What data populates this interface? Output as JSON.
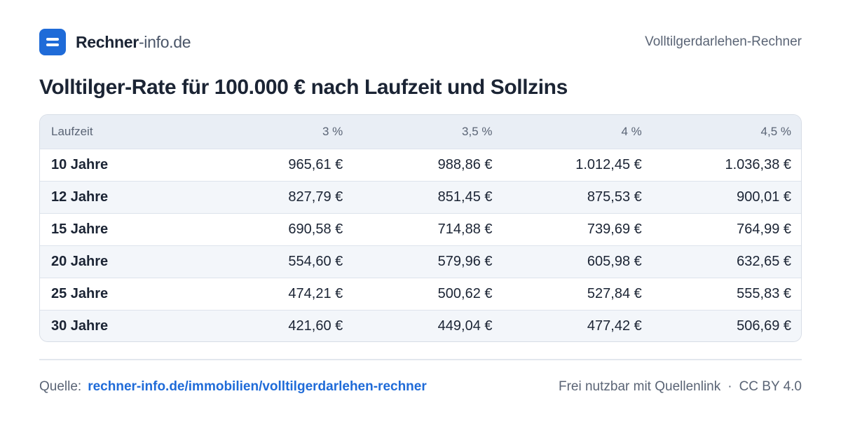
{
  "header": {
    "brand_name": "Rechner",
    "brand_domain": "-info.de",
    "logo_icon": "menu-lines-icon",
    "accent_color": "#1f6bd8",
    "tool_name": "Volltilgerdarlehen-Rechner"
  },
  "title": "Volltilger-Rate für 100.000 € nach Laufzeit und Sollzins",
  "table": {
    "columns": [
      "Laufzeit",
      "3 %",
      "3,5 %",
      "4 %",
      "4,5 %"
    ],
    "rows": [
      {
        "label": "10 Jahre",
        "values": [
          "965,61 €",
          "988,86 €",
          "1.012,45 €",
          "1.036,38 €"
        ]
      },
      {
        "label": "12 Jahre",
        "values": [
          "827,79 €",
          "851,45 €",
          "875,53 €",
          "900,01 €"
        ]
      },
      {
        "label": "15 Jahre",
        "values": [
          "690,58 €",
          "714,88 €",
          "739,69 €",
          "764,99 €"
        ]
      },
      {
        "label": "20 Jahre",
        "values": [
          "554,60 €",
          "579,96 €",
          "605,98 €",
          "632,65 €"
        ]
      },
      {
        "label": "25 Jahre",
        "values": [
          "474,21 €",
          "500,62 €",
          "527,84 €",
          "555,83 €"
        ]
      },
      {
        "label": "30 Jahre",
        "values": [
          "421,60 €",
          "449,04 €",
          "477,42 €",
          "506,69 €"
        ]
      }
    ]
  },
  "footer": {
    "source_label": "Quelle:",
    "source_link": "rechner-info.de/immobilien/volltilgerdarlehen-rechner",
    "usage_note": "Frei nutzbar mit Quellenlink",
    "separator": "·",
    "license": "CC BY 4.0"
  }
}
